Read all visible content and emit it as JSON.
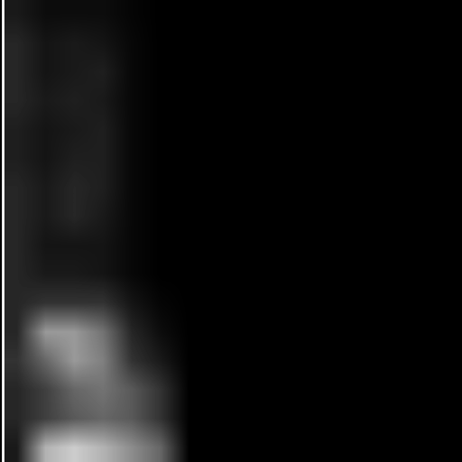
{
  "chart_data": {
    "type": "heatmap",
    "tick_labels": false,
    "grid": false,
    "value_range": [
      0,
      1
    ],
    "cells": [
      [
        0.1,
        0.05,
        0.05,
        0.05,
        0.02,
        0,
        0,
        0,
        0,
        0,
        0,
        0,
        0,
        0,
        0,
        0
      ],
      [
        0.15,
        0.08,
        0.1,
        0.08,
        0.03,
        0,
        0,
        0,
        0,
        0,
        0,
        0,
        0,
        0,
        0,
        0
      ],
      [
        0.15,
        0.08,
        0.1,
        0.12,
        0.03,
        0,
        0,
        0,
        0,
        0,
        0,
        0,
        0,
        0,
        0,
        0
      ],
      [
        0.15,
        0.1,
        0.12,
        0.1,
        0.03,
        0,
        0,
        0,
        0,
        0,
        0,
        0,
        0,
        0,
        0,
        0
      ],
      [
        0.12,
        0.08,
        0.1,
        0.12,
        0.03,
        0,
        0,
        0,
        0,
        0,
        0,
        0,
        0,
        0,
        0,
        0
      ],
      [
        0.12,
        0.08,
        0.12,
        0.12,
        0.03,
        0,
        0,
        0,
        0,
        0,
        0,
        0,
        0,
        0,
        0,
        0
      ],
      [
        0.15,
        0.1,
        0.15,
        0.12,
        0.03,
        0,
        0,
        0,
        0,
        0,
        0,
        0,
        0,
        0,
        0,
        0
      ],
      [
        0.15,
        0.1,
        0.15,
        0.1,
        0.03,
        0,
        0,
        0,
        0,
        0,
        0,
        0,
        0,
        0,
        0,
        0
      ],
      [
        0.15,
        0.08,
        0.08,
        0.08,
        0.03,
        0,
        0,
        0,
        0,
        0,
        0,
        0,
        0,
        0,
        0,
        0
      ],
      [
        0.15,
        0.1,
        0.1,
        0.08,
        0.03,
        0,
        0,
        0,
        0,
        0,
        0,
        0,
        0,
        0,
        0,
        0
      ],
      [
        0.15,
        0.2,
        0.2,
        0.2,
        0.08,
        0.02,
        0,
        0,
        0,
        0,
        0,
        0,
        0,
        0,
        0,
        0
      ],
      [
        0.15,
        0.6,
        0.6,
        0.45,
        0.15,
        0.05,
        0,
        0,
        0,
        0,
        0,
        0,
        0,
        0,
        0,
        0
      ],
      [
        0.2,
        0.4,
        0.6,
        0.5,
        0.2,
        0.1,
        0,
        0,
        0,
        0,
        0,
        0,
        0,
        0,
        0,
        0
      ],
      [
        0.15,
        0.25,
        0.4,
        0.45,
        0.35,
        0.2,
        0,
        0,
        0,
        0,
        0,
        0,
        0,
        0,
        0,
        0
      ],
      [
        0.15,
        0.25,
        0.35,
        0.4,
        0.35,
        0.2,
        0,
        0,
        0,
        0,
        0,
        0,
        0,
        0,
        0,
        0
      ],
      [
        0.1,
        0.7,
        0.8,
        0.7,
        0.55,
        0.4,
        0,
        0,
        0,
        0,
        0,
        0,
        0,
        0,
        0,
        0
      ]
    ]
  }
}
